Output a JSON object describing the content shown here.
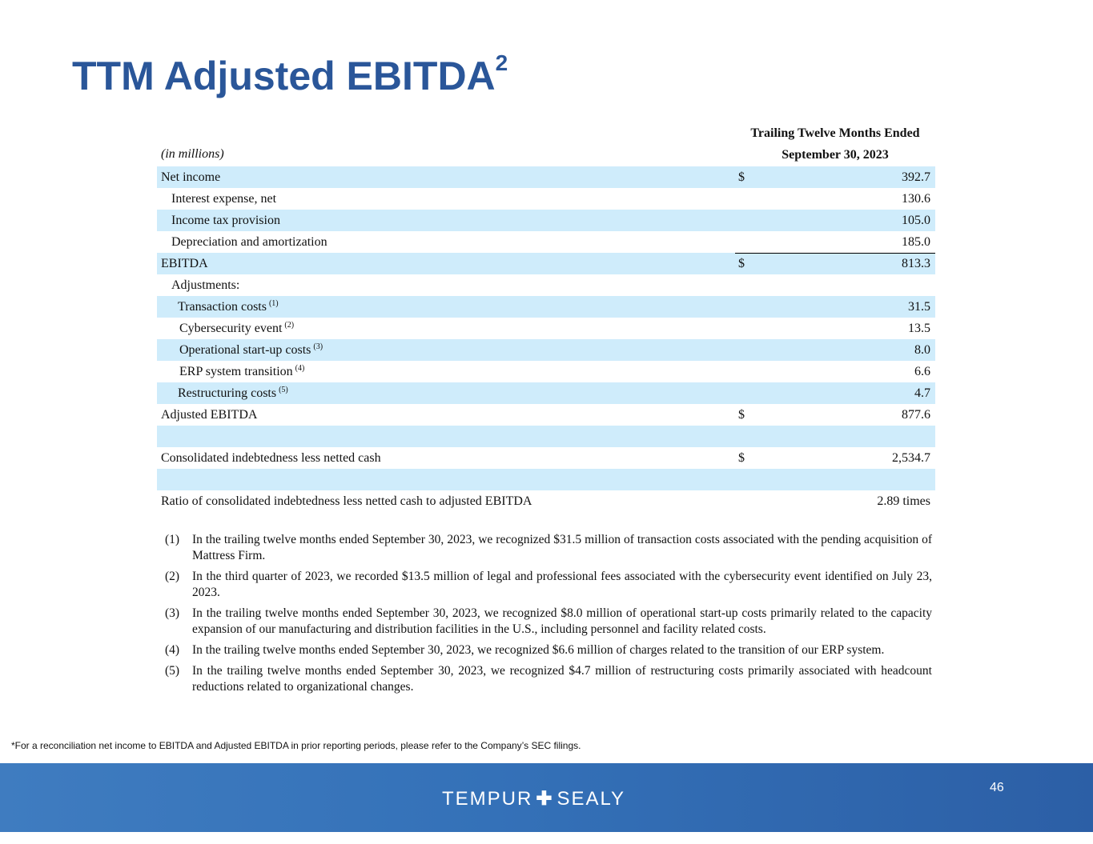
{
  "title": {
    "text": "TTM Adjusted EBITDA",
    "sup": "2"
  },
  "table": {
    "units_label": "(in millions)",
    "column_header": [
      "Trailing Twelve Months Ended",
      "September 30, 2023"
    ],
    "rows": [
      {
        "label": "Net income",
        "currency": "$",
        "value": "392.7",
        "ref": ""
      },
      {
        "label": "Interest expense, net",
        "currency": "",
        "value": "130.6",
        "ref": ""
      },
      {
        "label": "Income tax provision",
        "currency": "",
        "value": "105.0",
        "ref": ""
      },
      {
        "label": "Depreciation and amortization",
        "currency": "",
        "value": "185.0",
        "ref": ""
      },
      {
        "label": "EBITDA",
        "currency": "$",
        "value": "813.3",
        "ref": ""
      },
      {
        "label": "Adjustments:",
        "currency": "",
        "value": "",
        "ref": ""
      },
      {
        "label": "Transaction costs",
        "currency": "",
        "value": "31.5",
        "ref": "(1)"
      },
      {
        "label": "Cybersecurity event",
        "currency": "",
        "value": "13.5",
        "ref": "(2)"
      },
      {
        "label": "Operational start-up costs",
        "currency": "",
        "value": "8.0",
        "ref": "(3)"
      },
      {
        "label": "ERP system transition",
        "currency": "",
        "value": "6.6",
        "ref": "(4)"
      },
      {
        "label": "Restructuring costs",
        "currency": "",
        "value": "4.7",
        "ref": "(5)"
      },
      {
        "label": "Adjusted EBITDA",
        "currency": "$",
        "value": "877.6",
        "ref": ""
      },
      {
        "label": "",
        "currency": "",
        "value": "",
        "ref": ""
      },
      {
        "label": "Consolidated indebtedness less netted cash",
        "currency": "$",
        "value": "2,534.7",
        "ref": ""
      },
      {
        "label": "",
        "currency": "",
        "value": "",
        "ref": ""
      },
      {
        "label": "Ratio of consolidated indebtedness less netted cash to adjusted EBITDA",
        "currency": "",
        "value": "2.89 times",
        "ref": ""
      }
    ]
  },
  "notes": [
    {
      "num": "(1)",
      "text": "In the trailing twelve months ended September 30, 2023, we recognized $31.5 million of transaction costs associated with the pending acquisition of Mattress Firm."
    },
    {
      "num": "(2)",
      "text": "In the third quarter of 2023, we recorded $13.5 million of legal and professional fees associated with the cybersecurity event identified on July 23, 2023."
    },
    {
      "num": "(3)",
      "text": "In the trailing twelve months ended September 30, 2023, we recognized $8.0 million of operational start-up costs primarily related to the capacity expansion of our manufacturing and distribution facilities in the U.S., including personnel and facility related costs."
    },
    {
      "num": "(4)",
      "text": "In the trailing twelve months ended September 30, 2023, we recognized $6.6 million of charges related to the transition of our ERP system."
    },
    {
      "num": "(5)",
      "text": "In the trailing twelve months ended September 30, 2023, we recognized $4.7 million of restructuring costs primarily associated with headcount reductions related to organizational changes."
    }
  ],
  "footnote": "*For a reconciliation net income to EBITDA and Adjusted EBITDA in prior reporting periods, please refer to the Company’s SEC filings.",
  "footer": {
    "logo_left": "TEMPUR",
    "logo_plus": "✚",
    "logo_right": "SEALY",
    "page_number": "46"
  }
}
